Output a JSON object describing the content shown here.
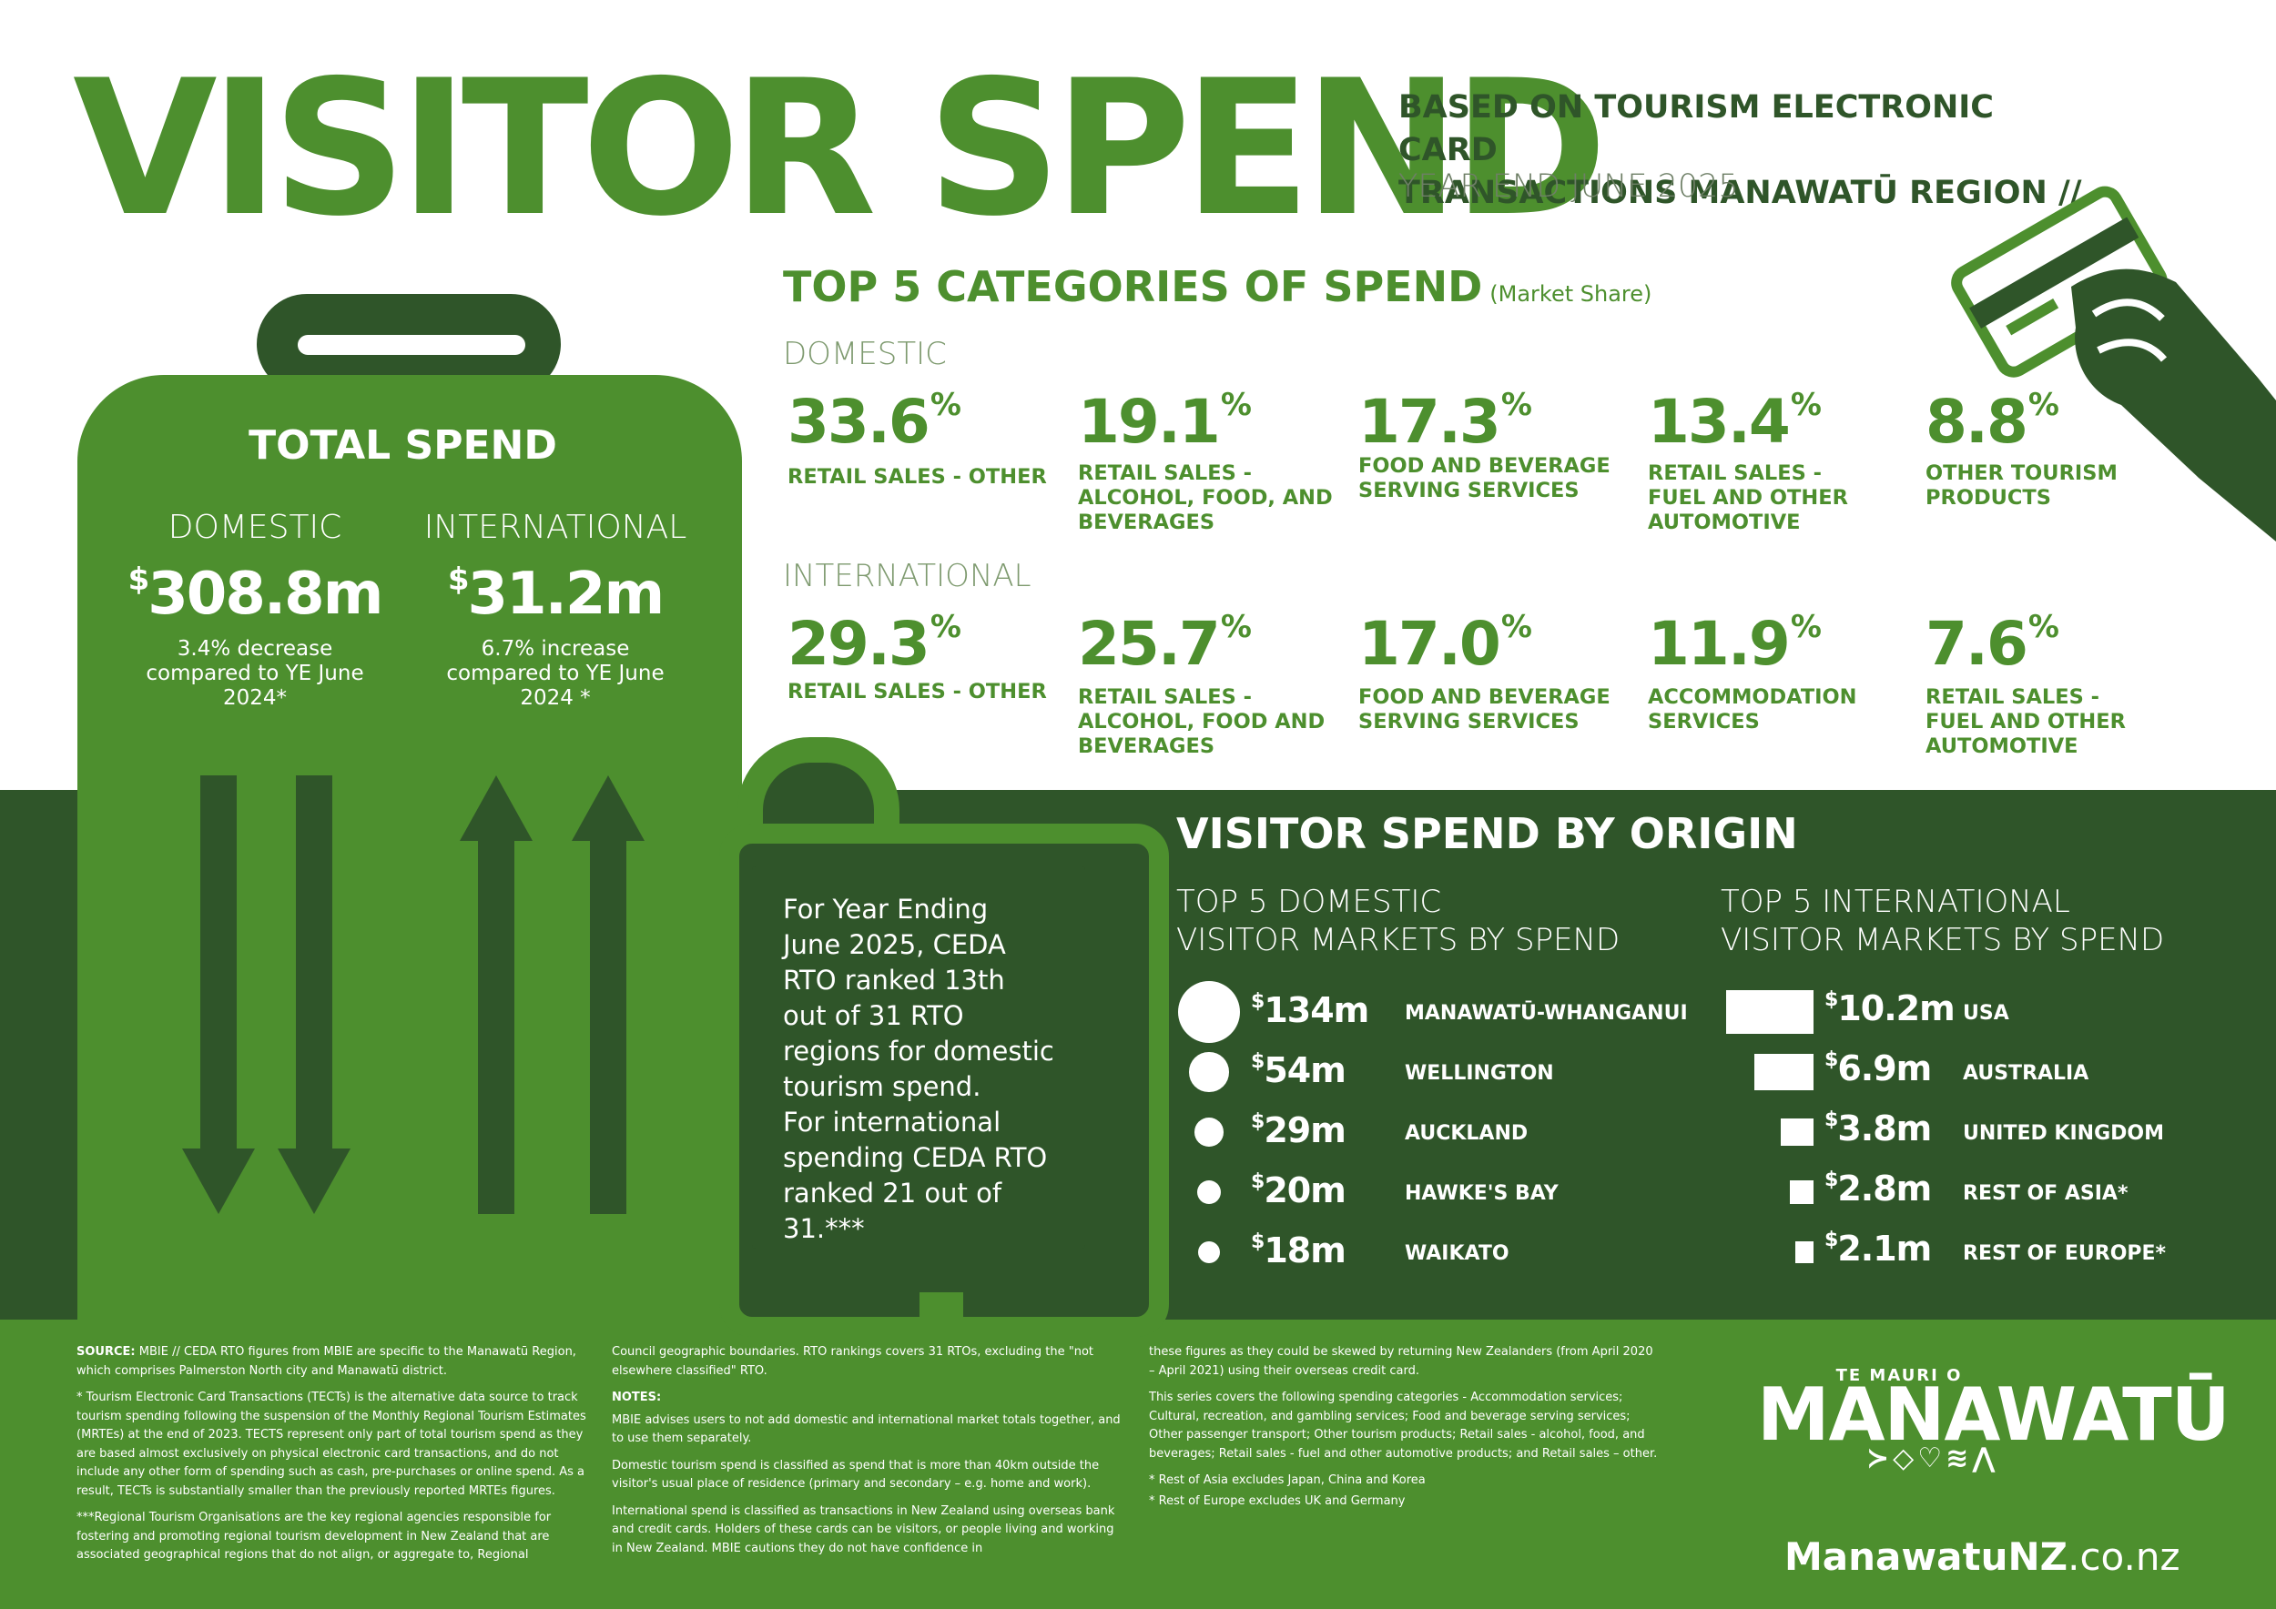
{
  "header": {
    "title": "VISITOR SPEND",
    "subtitle_line1": "BASED ON TOURISM ELECTRONIC CARD",
    "subtitle_line2": "TRANSACTIONS MANAWATŪ REGION //",
    "period": "YEAR END JUNE 2025"
  },
  "total_spend": {
    "title": "TOTAL SPEND",
    "domestic": {
      "label": "DOMESTIC",
      "currency": "$",
      "value": "308.8m",
      "note_lines": [
        "3.4% decrease",
        "compared to YE June",
        "2024*"
      ]
    },
    "international": {
      "label": "INTERNATIONAL",
      "currency": "$",
      "value": "31.2m",
      "note_lines": [
        "6.7% increase",
        "compared to YE June",
        "2024 *"
      ]
    }
  },
  "ceda_note_lines": [
    "For Year Ending",
    "June 2025, CEDA",
    "RTO ranked 13th",
    "out of 31 RTO",
    "regions for domestic",
    "tourism spend.",
    "For international",
    "spending CEDA RTO",
    "ranked 21 out of 31.***"
  ],
  "categories": {
    "title": "TOP 5 CATEGORIES OF SPEND",
    "title_note": "(Market Share)",
    "domestic_label": "DOMESTIC",
    "international_label": "INTERNATIONAL",
    "domestic": [
      {
        "value": "33.6",
        "unit": "%",
        "label_lines": [
          "RETAIL SALES - OTHER"
        ]
      },
      {
        "value": "19.1",
        "unit": "%",
        "label_lines": [
          "RETAIL SALES -",
          "ALCOHOL, FOOD, AND",
          "BEVERAGES"
        ]
      },
      {
        "value": "17.3",
        "unit": "%",
        "label_lines": [
          "FOOD AND BEVERAGE",
          "SERVING SERVICES"
        ]
      },
      {
        "value": "13.4",
        "unit": "%",
        "label_lines": [
          "RETAIL SALES -",
          "FUEL AND OTHER",
          "AUTOMOTIVE"
        ]
      },
      {
        "value": "8.8",
        "unit": "%",
        "label_lines": [
          "OTHER TOURISM",
          "PRODUCTS"
        ]
      }
    ],
    "international": [
      {
        "value": "29.3",
        "unit": "%",
        "label_lines": [
          "RETAIL SALES - OTHER"
        ]
      },
      {
        "value": "25.7",
        "unit": "%",
        "label_lines": [
          "RETAIL SALES -",
          "ALCOHOL, FOOD AND",
          "BEVERAGES"
        ]
      },
      {
        "value": "17.0",
        "unit": "%",
        "label_lines": [
          "FOOD AND BEVERAGE",
          "SERVING SERVICES"
        ]
      },
      {
        "value": "11.9",
        "unit": "%",
        "label_lines": [
          "ACCOMMODATION",
          "SERVICES"
        ]
      },
      {
        "value": "7.6",
        "unit": "%",
        "label_lines": [
          "RETAIL SALES -",
          "FUEL AND OTHER",
          "AUTOMOTIVE"
        ]
      }
    ]
  },
  "origin": {
    "title": "VISITOR SPEND BY ORIGIN",
    "domestic_heading_lines": [
      "TOP 5 DOMESTIC",
      "VISITOR MARKETS BY SPEND"
    ],
    "international_heading_lines": [
      "TOP 5 INTERNATIONAL",
      "VISITOR MARKETS BY SPEND"
    ],
    "domestic": [
      {
        "currency": "$",
        "value": "134m",
        "amount_m": 134,
        "name": "MANAWATŪ-WHANGANUI"
      },
      {
        "currency": "$",
        "value": "54m",
        "amount_m": 54,
        "name": "WELLINGTON"
      },
      {
        "currency": "$",
        "value": "29m",
        "amount_m": 29,
        "name": "AUCKLAND"
      },
      {
        "currency": "$",
        "value": "20m",
        "amount_m": 20,
        "name": "HAWKE'S BAY"
      },
      {
        "currency": "$",
        "value": "18m",
        "amount_m": 18,
        "name": "WAIKATO"
      }
    ],
    "international": [
      {
        "currency": "$",
        "value": "10.2m",
        "amount_m": 10.2,
        "name": "USA"
      },
      {
        "currency": "$",
        "value": "6.9m",
        "amount_m": 6.9,
        "name": "AUSTRALIA"
      },
      {
        "currency": "$",
        "value": "3.8m",
        "amount_m": 3.8,
        "name": "UNITED KINGDOM"
      },
      {
        "currency": "$",
        "value": "2.8m",
        "amount_m": 2.8,
        "name": "REST OF ASIA*"
      },
      {
        "currency": "$",
        "value": "2.1m",
        "amount_m": 2.1,
        "name": "REST OF EUROPE*"
      }
    ]
  },
  "footer": {
    "source_label": "SOURCE:",
    "source_text": "MBIE // CEDA RTO figures from MBIE are specific to the Manawatū Region, which comprises Palmerston North city and Manawatū district.",
    "tect_note": "* Tourism Electronic Card Transactions (TECTs) is the alternative data source to track tourism spending following the suspension of the Monthly Regional Tourism Estimates (MRTEs) at the end of 2023. TECTS represent only part of total tourism spend as they are based almost exclusively on physical electronic card transactions, and do not include any other form of spending such as cash, pre-purchases or online spend. As a result, TECTs is substantially smaller than the previously reported MRTEs figures.",
    "rto_note": "***Regional Tourism Organisations are the key regional agencies responsible for fostering and promoting regional tourism development in New Zealand that are associated geographical regions that do not align, or aggregate to, Regional",
    "council_text": "Council geographic boundaries. RTO rankings covers 31 RTOs, excluding the \"not elsewhere classified\" RTO.",
    "notes_label": "NOTES:",
    "note1": "MBIE advises users to not add domestic and international market totals together, and to use them separately.",
    "note2": "Domestic tourism spend is classified as spend that is more than 40km outside the visitor's usual place of residence (primary and secondary – e.g. home and work).",
    "note3": "International spend is classified as transactions in New Zealand using overseas bank and credit cards. Holders of these cards can be visitors, or people living and working in New Zealand. MBIE cautions they do not have confidence in",
    "col3_text1": "these figures as they could be skewed by returning New Zealanders (from April 2020 – April 2021) using their overseas credit card.",
    "col3_text2": "This series covers the following spending categories - Accommodation services; Cultural, recreation, and gambling services; Food and beverage serving services; Other passenger transport; Other tourism products; Retail sales - alcohol, food, and beverages; Retail sales - fuel and other automotive products; and Retail sales – other.",
    "asia_note": "* Rest of Asia excludes Japan, China and Korea",
    "europe_note": "* Rest of Europe excludes UK and Germany"
  },
  "logo": {
    "small": "TE MAURI O",
    "main": "MANAWATŪ",
    "glyphs": "≻◇♡≋⋀"
  },
  "website": {
    "domain": "ManawatuNZ",
    "tld": ".co.nz"
  },
  "colors": {
    "light_green": "#4d8f2e",
    "dark_green": "#2f5529",
    "white": "#ffffff"
  },
  "icons": [
    "hand-card-icon",
    "suitcase-icon",
    "down-arrow-icon",
    "up-arrow-icon"
  ]
}
